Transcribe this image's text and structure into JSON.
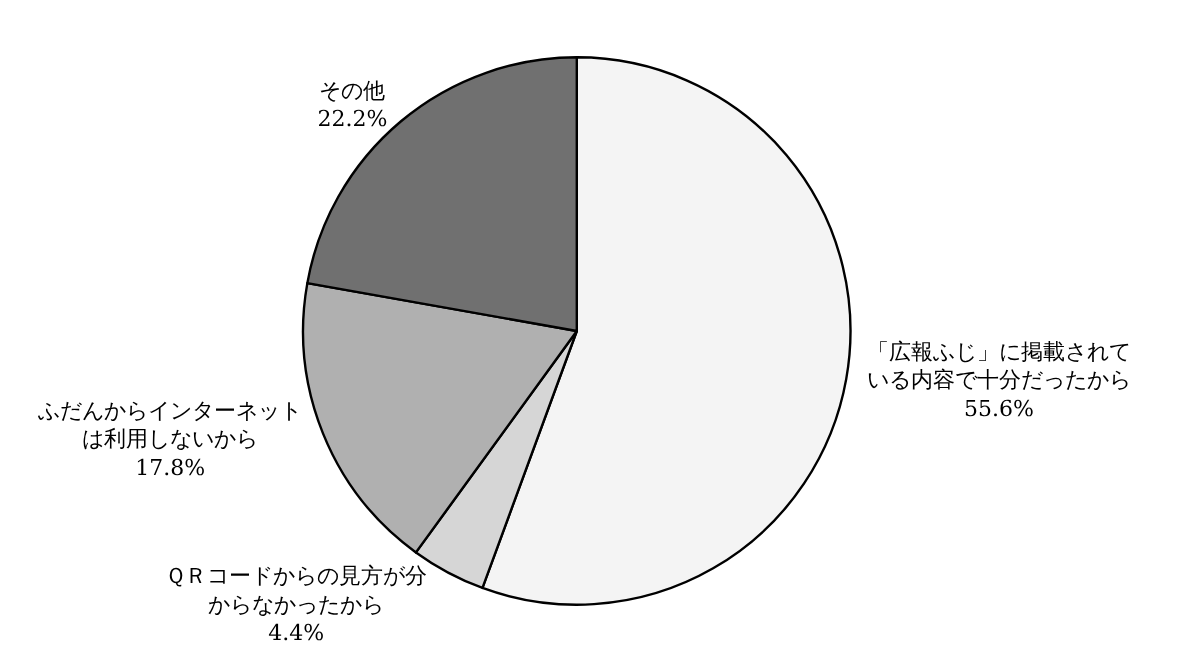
{
  "chart_data": {
    "type": "pie",
    "categories": [
      "「広報ふじ」に掲載されている内容で十分だったから",
      "ＱＲコードからの見方が分からなかったから",
      "ふだんからインターネットは利用しないから",
      "その他"
    ],
    "values": [
      55.6,
      4.4,
      17.8,
      22.2
    ],
    "value_labels": [
      "55.6%",
      "4.4%",
      "17.8%",
      "22.2%"
    ],
    "colors": [
      "#f4f4f4",
      "#d6d6d6",
      "#b0b0b0",
      "#707070"
    ],
    "legend": false
  }
}
